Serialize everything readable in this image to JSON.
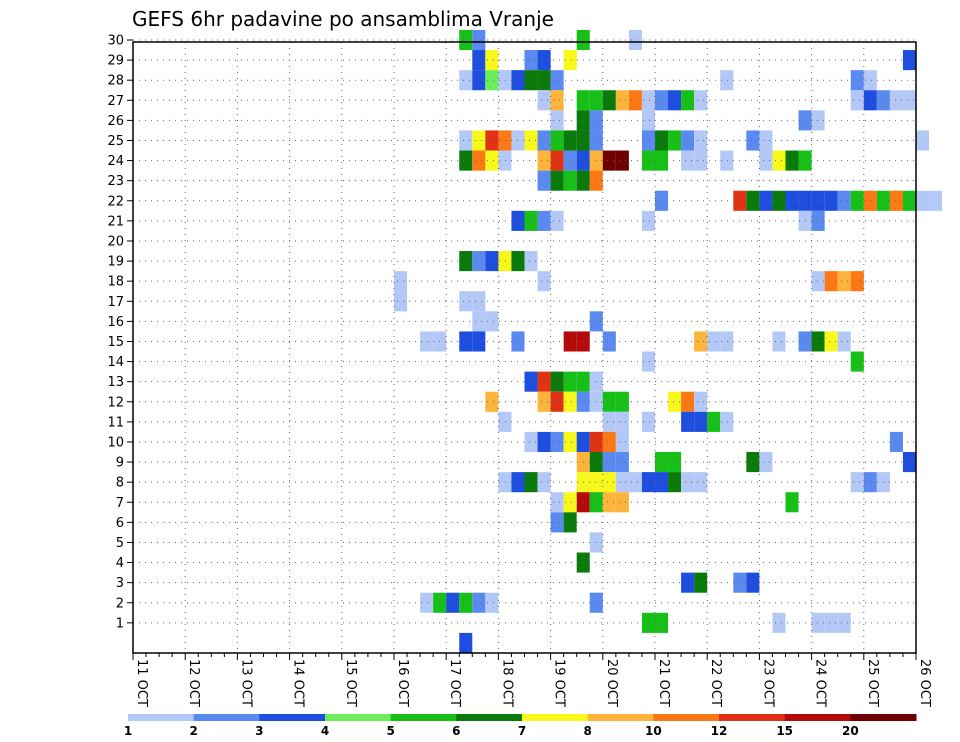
{
  "chart_data": {
    "type": "heatmap",
    "title": "GEFS 6hr padavine po ansamblima Vranje",
    "xlabel": "",
    "ylabel": "",
    "x_ticks": [
      "11 OCT",
      "12 OCT",
      "13 OCT",
      "14 OCT",
      "15 OCT",
      "16 OCT",
      "17 OCT",
      "18 OCT",
      "19 OCT",
      "20 OCT",
      "21 OCT",
      "22 OCT",
      "23 OCT",
      "24 OCT",
      "25 OCT",
      "26 OCT"
    ],
    "y_ticks": [
      "1",
      "2",
      "3",
      "4",
      "5",
      "6",
      "7",
      "8",
      "9",
      "10",
      "11",
      "12",
      "13",
      "14",
      "15",
      "16",
      "17",
      "18",
      "19",
      "20",
      "21",
      "22",
      "23",
      "24",
      "25",
      "26",
      "27",
      "28",
      "29",
      "30"
    ],
    "xlim": [
      "11 OCT 00Z",
      "26 OCT 00Z"
    ],
    "ylim": [
      0,
      30
    ],
    "time_step_hours": 6,
    "grid": "dotted",
    "colorbar": {
      "position": "bottom",
      "labels": [
        "1",
        "2",
        "3",
        "4",
        "5",
        "6",
        "7",
        "8",
        "10",
        "12",
        "15",
        "20"
      ],
      "colors": [
        "#b4c8f8",
        "#5a8af0",
        "#1e4ee0",
        "#6cee5a",
        "#16c016",
        "#0a7a0a",
        "#f8f81a",
        "#fcb43a",
        "#fc7814",
        "#e23214",
        "#b40a0a",
        "#6e0000"
      ]
    },
    "cells": [
      [
        "17 OCT 06Z",
        30,
        5
      ],
      [
        "17 OCT 12Z",
        30,
        2
      ],
      [
        "19 OCT 12Z",
        30,
        5
      ],
      [
        "20 OCT 12Z",
        30,
        1
      ],
      [
        "17 OCT 12Z",
        29,
        3
      ],
      [
        "17 OCT 18Z",
        29,
        7
      ],
      [
        "18 OCT 12Z",
        29,
        2
      ],
      [
        "18 OCT 18Z",
        29,
        3
      ],
      [
        "19 OCT 06Z",
        29,
        7
      ],
      [
        "25 OCT 18Z",
        29,
        3
      ],
      [
        "17 OCT 06Z",
        28,
        1
      ],
      [
        "17 OCT 12Z",
        28,
        3
      ],
      [
        "17 OCT 18Z",
        28,
        4
      ],
      [
        "18 OCT 00Z",
        28,
        1
      ],
      [
        "18 OCT 06Z",
        28,
        3
      ],
      [
        "18 OCT 12Z",
        28,
        6
      ],
      [
        "18 OCT 18Z",
        28,
        6
      ],
      [
        "19 OCT 00Z",
        28,
        2
      ],
      [
        "22 OCT 06Z",
        28,
        1
      ],
      [
        "24 OCT 18Z",
        28,
        2
      ],
      [
        "25 OCT 00Z",
        28,
        1
      ],
      [
        "18 OCT 18Z",
        27,
        1
      ],
      [
        "19 OCT 00Z",
        27,
        8
      ],
      [
        "19 OCT 12Z",
        27,
        5
      ],
      [
        "19 OCT 18Z",
        27,
        5
      ],
      [
        "20 OCT 00Z",
        27,
        6
      ],
      [
        "20 OCT 06Z",
        27,
        8
      ],
      [
        "20 OCT 12Z",
        27,
        10
      ],
      [
        "20 OCT 18Z",
        27,
        1
      ],
      [
        "21 OCT 00Z",
        27,
        2
      ],
      [
        "21 OCT 06Z",
        27,
        3
      ],
      [
        "21 OCT 12Z",
        27,
        5
      ],
      [
        "21 OCT 18Z",
        27,
        1
      ],
      [
        "24 OCT 18Z",
        27,
        1
      ],
      [
        "25 OCT 00Z",
        27,
        3
      ],
      [
        "25 OCT 06Z",
        27,
        2
      ],
      [
        "25 OCT 12Z",
        27,
        1
      ],
      [
        "25 OCT 18Z",
        27,
        1
      ],
      [
        "19 OCT 00Z",
        26,
        1
      ],
      [
        "19 OCT 12Z",
        26,
        6
      ],
      [
        "19 OCT 18Z",
        26,
        2
      ],
      [
        "20 OCT 18Z",
        26,
        1
      ],
      [
        "23 OCT 18Z",
        26,
        2
      ],
      [
        "24 OCT 00Z",
        26,
        1
      ],
      [
        "17 OCT 06Z",
        25,
        1
      ],
      [
        "17 OCT 12Z",
        25,
        7
      ],
      [
        "17 OCT 18Z",
        25,
        12
      ],
      [
        "18 OCT 00Z",
        25,
        10
      ],
      [
        "18 OCT 06Z",
        25,
        1
      ],
      [
        "18 OCT 12Z",
        25,
        7
      ],
      [
        "18 OCT 18Z",
        25,
        2
      ],
      [
        "19 OCT 00Z",
        25,
        5
      ],
      [
        "19 OCT 06Z",
        25,
        6
      ],
      [
        "19 OCT 12Z",
        25,
        6
      ],
      [
        "19 OCT 18Z",
        25,
        2
      ],
      [
        "20 OCT 18Z",
        25,
        2
      ],
      [
        "21 OCT 00Z",
        25,
        6
      ],
      [
        "21 OCT 06Z",
        25,
        5
      ],
      [
        "21 OCT 12Z",
        25,
        2
      ],
      [
        "21 OCT 18Z",
        25,
        1
      ],
      [
        "22 OCT 18Z",
        25,
        2
      ],
      [
        "23 OCT 00Z",
        25,
        1
      ],
      [
        "26 OCT 00Z",
        25,
        1
      ],
      [
        "17 OCT 06Z",
        24,
        6
      ],
      [
        "17 OCT 12Z",
        24,
        10
      ],
      [
        "17 OCT 18Z",
        24,
        7
      ],
      [
        "18 OCT 00Z",
        24,
        1
      ],
      [
        "18 OCT 18Z",
        24,
        8
      ],
      [
        "19 OCT 00Z",
        24,
        12
      ],
      [
        "19 OCT 06Z",
        24,
        2
      ],
      [
        "19 OCT 12Z",
        24,
        3
      ],
      [
        "19 OCT 18Z",
        24,
        8
      ],
      [
        "20 OCT 00Z",
        24,
        20
      ],
      [
        "20 OCT 06Z",
        24,
        20
      ],
      [
        "20 OCT 18Z",
        24,
        5
      ],
      [
        "21 OCT 00Z",
        24,
        5
      ],
      [
        "21 OCT 12Z",
        24,
        1
      ],
      [
        "21 OCT 18Z",
        24,
        1
      ],
      [
        "22 OCT 06Z",
        24,
        1
      ],
      [
        "23 OCT 00Z",
        24,
        1
      ],
      [
        "23 OCT 06Z",
        24,
        7
      ],
      [
        "23 OCT 12Z",
        24,
        6
      ],
      [
        "23 OCT 18Z",
        24,
        5
      ],
      [
        "18 OCT 18Z",
        23,
        2
      ],
      [
        "19 OCT 00Z",
        23,
        6
      ],
      [
        "19 OCT 06Z",
        23,
        5
      ],
      [
        "19 OCT 12Z",
        23,
        6
      ],
      [
        "19 OCT 18Z",
        23,
        10
      ],
      [
        "21 OCT 00Z",
        22,
        2
      ],
      [
        "22 OCT 12Z",
        22,
        12
      ],
      [
        "22 OCT 18Z",
        22,
        6
      ],
      [
        "23 OCT 00Z",
        22,
        3
      ],
      [
        "23 OCT 06Z",
        22,
        6
      ],
      [
        "23 OCT 12Z",
        22,
        3
      ],
      [
        "23 OCT 18Z",
        22,
        3
      ],
      [
        "24 OCT 00Z",
        22,
        3
      ],
      [
        "24 OCT 06Z",
        22,
        3
      ],
      [
        "24 OCT 12Z",
        22,
        2
      ],
      [
        "24 OCT 18Z",
        22,
        5
      ],
      [
        "25 OCT 00Z",
        22,
        10
      ],
      [
        "25 OCT 06Z",
        22,
        5
      ],
      [
        "25 OCT 12Z",
        22,
        10
      ],
      [
        "25 OCT 18Z",
        22,
        5
      ],
      [
        "26 OCT 00Z",
        22,
        1
      ],
      [
        "26 OCT 06Z",
        22,
        1
      ],
      [
        "18 OCT 06Z",
        21,
        3
      ],
      [
        "18 OCT 12Z",
        21,
        5
      ],
      [
        "18 OCT 18Z",
        21,
        2
      ],
      [
        "19 OCT 00Z",
        21,
        1
      ],
      [
        "20 OCT 18Z",
        21,
        1
      ],
      [
        "23 OCT 18Z",
        21,
        1
      ],
      [
        "24 OCT 00Z",
        21,
        2
      ],
      [
        "17 OCT 06Z",
        19,
        6
      ],
      [
        "17 OCT 12Z",
        19,
        2
      ],
      [
        "17 OCT 18Z",
        19,
        3
      ],
      [
        "18 OCT 00Z",
        19,
        7
      ],
      [
        "18 OCT 06Z",
        19,
        6
      ],
      [
        "18 OCT 12Z",
        19,
        1
      ],
      [
        "16 OCT 00Z",
        18,
        1
      ],
      [
        "18 OCT 18Z",
        18,
        1
      ],
      [
        "24 OCT 00Z",
        18,
        1
      ],
      [
        "24 OCT 06Z",
        18,
        10
      ],
      [
        "24 OCT 12Z",
        18,
        8
      ],
      [
        "24 OCT 18Z",
        18,
        10
      ],
      [
        "16 OCT 00Z",
        17,
        1
      ],
      [
        "17 OCT 06Z",
        17,
        1
      ],
      [
        "17 OCT 12Z",
        17,
        1
      ],
      [
        "17 OCT 12Z",
        16,
        1
      ],
      [
        "17 OCT 18Z",
        16,
        1
      ],
      [
        "19 OCT 18Z",
        16,
        2
      ],
      [
        "16 OCT 12Z",
        15,
        1
      ],
      [
        "16 OCT 18Z",
        15,
        1
      ],
      [
        "17 OCT 06Z",
        15,
        3
      ],
      [
        "17 OCT 12Z",
        15,
        3
      ],
      [
        "18 OCT 06Z",
        15,
        2
      ],
      [
        "19 OCT 06Z",
        15,
        15
      ],
      [
        "19 OCT 12Z",
        15,
        15
      ],
      [
        "20 OCT 00Z",
        15,
        2
      ],
      [
        "21 OCT 18Z",
        15,
        8
      ],
      [
        "22 OCT 00Z",
        15,
        1
      ],
      [
        "22 OCT 06Z",
        15,
        1
      ],
      [
        "23 OCT 06Z",
        15,
        1
      ],
      [
        "23 OCT 18Z",
        15,
        2
      ],
      [
        "24 OCT 00Z",
        15,
        6
      ],
      [
        "24 OCT 06Z",
        15,
        7
      ],
      [
        "24 OCT 12Z",
        15,
        1
      ],
      [
        "20 OCT 18Z",
        14,
        1
      ],
      [
        "24 OCT 18Z",
        14,
        5
      ],
      [
        "18 OCT 12Z",
        13,
        3
      ],
      [
        "18 OCT 18Z",
        13,
        12
      ],
      [
        "19 OCT 00Z",
        13,
        6
      ],
      [
        "19 OCT 06Z",
        13,
        5
      ],
      [
        "19 OCT 12Z",
        13,
        5
      ],
      [
        "19 OCT 18Z",
        13,
        1
      ],
      [
        "17 OCT 18Z",
        12,
        8
      ],
      [
        "18 OCT 18Z",
        12,
        8
      ],
      [
        "19 OCT 00Z",
        12,
        12
      ],
      [
        "19 OCT 06Z",
        12,
        7
      ],
      [
        "19 OCT 12Z",
        12,
        2
      ],
      [
        "19 OCT 18Z",
        12,
        1
      ],
      [
        "20 OCT 00Z",
        12,
        5
      ],
      [
        "20 OCT 06Z",
        12,
        5
      ],
      [
        "21 OCT 06Z",
        12,
        7
      ],
      [
        "21 OCT 12Z",
        12,
        10
      ],
      [
        "21 OCT 18Z",
        12,
        1
      ],
      [
        "18 OCT 00Z",
        11,
        1
      ],
      [
        "20 OCT 00Z",
        11,
        1
      ],
      [
        "20 OCT 06Z",
        11,
        1
      ],
      [
        "20 OCT 18Z",
        11,
        1
      ],
      [
        "21 OCT 12Z",
        11,
        3
      ],
      [
        "21 OCT 18Z",
        11,
        3
      ],
      [
        "22 OCT 00Z",
        11,
        5
      ],
      [
        "22 OCT 06Z",
        11,
        1
      ],
      [
        "18 OCT 12Z",
        10,
        1
      ],
      [
        "18 OCT 18Z",
        10,
        3
      ],
      [
        "19 OCT 00Z",
        10,
        2
      ],
      [
        "19 OCT 06Z",
        10,
        7
      ],
      [
        "19 OCT 12Z",
        10,
        3
      ],
      [
        "19 OCT 18Z",
        10,
        12
      ],
      [
        "20 OCT 00Z",
        10,
        10
      ],
      [
        "20 OCT 06Z",
        10,
        1
      ],
      [
        "25 OCT 12Z",
        10,
        2
      ],
      [
        "19 OCT 12Z",
        9,
        8
      ],
      [
        "19 OCT 18Z",
        9,
        6
      ],
      [
        "20 OCT 00Z",
        9,
        2
      ],
      [
        "20 OCT 06Z",
        9,
        2
      ],
      [
        "21 OCT 00Z",
        9,
        5
      ],
      [
        "21 OCT 06Z",
        9,
        5
      ],
      [
        "22 OCT 18Z",
        9,
        6
      ],
      [
        "23 OCT 00Z",
        9,
        1
      ],
      [
        "25 OCT 18Z",
        9,
        3
      ],
      [
        "18 OCT 00Z",
        8,
        1
      ],
      [
        "18 OCT 06Z",
        8,
        3
      ],
      [
        "18 OCT 12Z",
        8,
        6
      ],
      [
        "18 OCT 18Z",
        8,
        1
      ],
      [
        "19 OCT 12Z",
        8,
        7
      ],
      [
        "19 OCT 18Z",
        8,
        7
      ],
      [
        "20 OCT 00Z",
        8,
        7
      ],
      [
        "20 OCT 06Z",
        8,
        1
      ],
      [
        "20 OCT 12Z",
        8,
        1
      ],
      [
        "20 OCT 18Z",
        8,
        3
      ],
      [
        "21 OCT 00Z",
        8,
        3
      ],
      [
        "21 OCT 06Z",
        8,
        6
      ],
      [
        "21 OCT 12Z",
        8,
        1
      ],
      [
        "21 OCT 18Z",
        8,
        1
      ],
      [
        "24 OCT 18Z",
        8,
        1
      ],
      [
        "25 OCT 00Z",
        8,
        2
      ],
      [
        "25 OCT 06Z",
        8,
        1
      ],
      [
        "19 OCT 00Z",
        7,
        1
      ],
      [
        "19 OCT 06Z",
        7,
        7
      ],
      [
        "19 OCT 12Z",
        7,
        15
      ],
      [
        "19 OCT 18Z",
        7,
        5
      ],
      [
        "20 OCT 00Z",
        7,
        8
      ],
      [
        "20 OCT 06Z",
        7,
        8
      ],
      [
        "23 OCT 12Z",
        7,
        5
      ],
      [
        "19 OCT 00Z",
        6,
        2
      ],
      [
        "19 OCT 06Z",
        6,
        6
      ],
      [
        "19 OCT 18Z",
        5,
        1
      ],
      [
        "19 OCT 12Z",
        4,
        6
      ],
      [
        "21 OCT 12Z",
        3,
        3
      ],
      [
        "21 OCT 18Z",
        3,
        6
      ],
      [
        "22 OCT 12Z",
        3,
        2
      ],
      [
        "22 OCT 18Z",
        3,
        3
      ],
      [
        "16 OCT 12Z",
        2,
        1
      ],
      [
        "16 OCT 18Z",
        2,
        5
      ],
      [
        "17 OCT 00Z",
        2,
        3
      ],
      [
        "17 OCT 06Z",
        2,
        5
      ],
      [
        "17 OCT 12Z",
        2,
        2
      ],
      [
        "17 OCT 18Z",
        2,
        1
      ],
      [
        "19 OCT 18Z",
        2,
        2
      ],
      [
        "20 OCT 18Z",
        1,
        5
      ],
      [
        "21 OCT 00Z",
        1,
        5
      ],
      [
        "23 OCT 06Z",
        1,
        1
      ],
      [
        "24 OCT 00Z",
        1,
        1
      ],
      [
        "24 OCT 06Z",
        1,
        1
      ],
      [
        "24 OCT 12Z",
        1,
        1
      ],
      [
        "17 OCT 06Z",
        0,
        3
      ]
    ]
  }
}
